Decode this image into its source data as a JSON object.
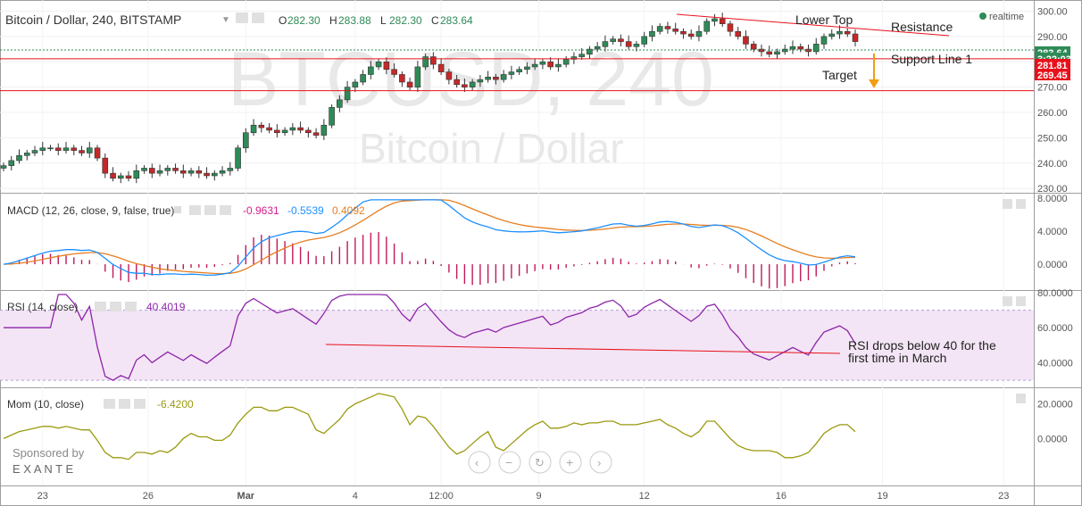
{
  "watermark": {
    "symbol": "BTCUSD, 240",
    "name": "Bitcoin / Dollar"
  },
  "header": {
    "title": "Bitcoin / Dollar, 240, BITSTAMP",
    "ohlc": [
      {
        "key": "O",
        "value": "282.30"
      },
      {
        "key": "H",
        "value": "283.88"
      },
      {
        "key": "L",
        "value": "282.30"
      },
      {
        "key": "C",
        "value": "283.64"
      }
    ],
    "realtime": "realtime"
  },
  "price_axis": {
    "ticks": [
      "300.00",
      "290.00",
      "280.00",
      "270.00",
      "260.00",
      "250.00",
      "240.00",
      "230.00"
    ],
    "tick_values": [
      300,
      290,
      280,
      270,
      260,
      250,
      240,
      230
    ],
    "range": [
      229,
      303
    ],
    "badges": [
      {
        "text": "283.64",
        "value": 283.64,
        "color": "#2e8b57"
      },
      {
        "text": "3:22:03",
        "value": 281.2,
        "color": "#2e8b57"
      },
      {
        "text": "281.81",
        "value": 278.7,
        "color": "#e8101a"
      },
      {
        "text": "269.45",
        "value": 274.8,
        "color": "#e8101a"
      }
    ]
  },
  "annotations": {
    "lower_top": "Lower Top",
    "resistance": "Resistance",
    "support": "Support Line 1",
    "target": "Target",
    "rsi_note_1": "RSI drops below 40 for the",
    "rsi_note_2": "first time in March",
    "support_level": 281.81,
    "target_level": 269.45
  },
  "macd": {
    "label": "MACD (12, 26, close, 9, false, true)",
    "values": [
      {
        "text": "-0.9631",
        "color": "#d81b8c"
      },
      {
        "text": "-0.5539",
        "color": "#1e90ff"
      },
      {
        "text": "0.4092",
        "color": "#e67e22"
      }
    ],
    "ticks": [
      "8.0000",
      "4.0000",
      "0.0000"
    ],
    "tick_values": [
      8,
      4,
      0
    ],
    "range": [
      -2.8,
      8.0
    ]
  },
  "rsi": {
    "label": "RSI (14, close)",
    "value": "40.4019",
    "ticks": [
      "80.0000",
      "60.0000",
      "40.0000"
    ],
    "tick_values": [
      80,
      60,
      40
    ],
    "range": [
      28,
      80
    ],
    "band": [
      30,
      70
    ]
  },
  "mom": {
    "label": "Mom (10, close)",
    "value": "-6.4200",
    "ticks": [
      "20.0000",
      "0.0000"
    ],
    "tick_values": [
      20,
      0
    ],
    "range": [
      -25,
      28
    ]
  },
  "time_axis": {
    "labels": [
      "23",
      "26",
      "Mar",
      "4",
      "12:00",
      "9",
      "12",
      "16",
      "19",
      "23"
    ],
    "positions": [
      10,
      37,
      62,
      90,
      112,
      137,
      164,
      199,
      225,
      256
    ]
  },
  "sponsor": {
    "line1": "Sponsored by",
    "line2": "E X A N T E"
  },
  "colors": {
    "up": "#2e8b57",
    "down": "#c62828",
    "support_line": "#e8101a",
    "resistance_line": "#e8101a",
    "target_arrow": "#f39c12",
    "macd": "#1e90ff",
    "signal": "#e67e22",
    "hist": "#c2185b",
    "rsi": "#8e24aa",
    "rsi_band": "#f3e5f5",
    "mom": "#9a9a10"
  },
  "chart_data": {
    "type": "line",
    "x": [
      0,
      2,
      4,
      6,
      8,
      10,
      12,
      14,
      16,
      18,
      20,
      22,
      24,
      26,
      28,
      30,
      32,
      34,
      36,
      38,
      40,
      42,
      44,
      46,
      48,
      50,
      52,
      54,
      56,
      58,
      60,
      62,
      64,
      66,
      68,
      70,
      72,
      74,
      76,
      78,
      80,
      82,
      84,
      86,
      88,
      90,
      92,
      94,
      96,
      98,
      100,
      102,
      104,
      106,
      108,
      110,
      112,
      114,
      116,
      118,
      120,
      122,
      124,
      126,
      128,
      130,
      132,
      134,
      136,
      138,
      140,
      142,
      144,
      146,
      148,
      150,
      152,
      154,
      156,
      158,
      160,
      162,
      164,
      166,
      168,
      170,
      172,
      174,
      176,
      178,
      180,
      182,
      184,
      186,
      188,
      190,
      192,
      194,
      196,
      198,
      200,
      202,
      204,
      206,
      208,
      210,
      212,
      214,
      216,
      218
    ],
    "series": [
      {
        "values": [
          239,
          241,
          243,
          244,
          245,
          246,
          246,
          245,
          246,
          245,
          244,
          246,
          242,
          236,
          234,
          235,
          234,
          237,
          238,
          236,
          237,
          238,
          237,
          236,
          237,
          236,
          235,
          236,
          237,
          238,
          246,
          252,
          255,
          254,
          253,
          252,
          253,
          254,
          253,
          252,
          251,
          255,
          262,
          265,
          270,
          272,
          275,
          278,
          280,
          277,
          275,
          272,
          270,
          278,
          282,
          279,
          276,
          273,
          271,
          270,
          272,
          273,
          274,
          273,
          275,
          276,
          277,
          278,
          279,
          280,
          278,
          279,
          281,
          282,
          283,
          285,
          286,
          288,
          289,
          288,
          286,
          287,
          290,
          292,
          294,
          293,
          292,
          291,
          290,
          292,
          296,
          297,
          295,
          292,
          290,
          287,
          285,
          284,
          283,
          284,
          285,
          286,
          285,
          284,
          287,
          290,
          291,
          292,
          291,
          288
        ]
      }
    ]
  }
}
